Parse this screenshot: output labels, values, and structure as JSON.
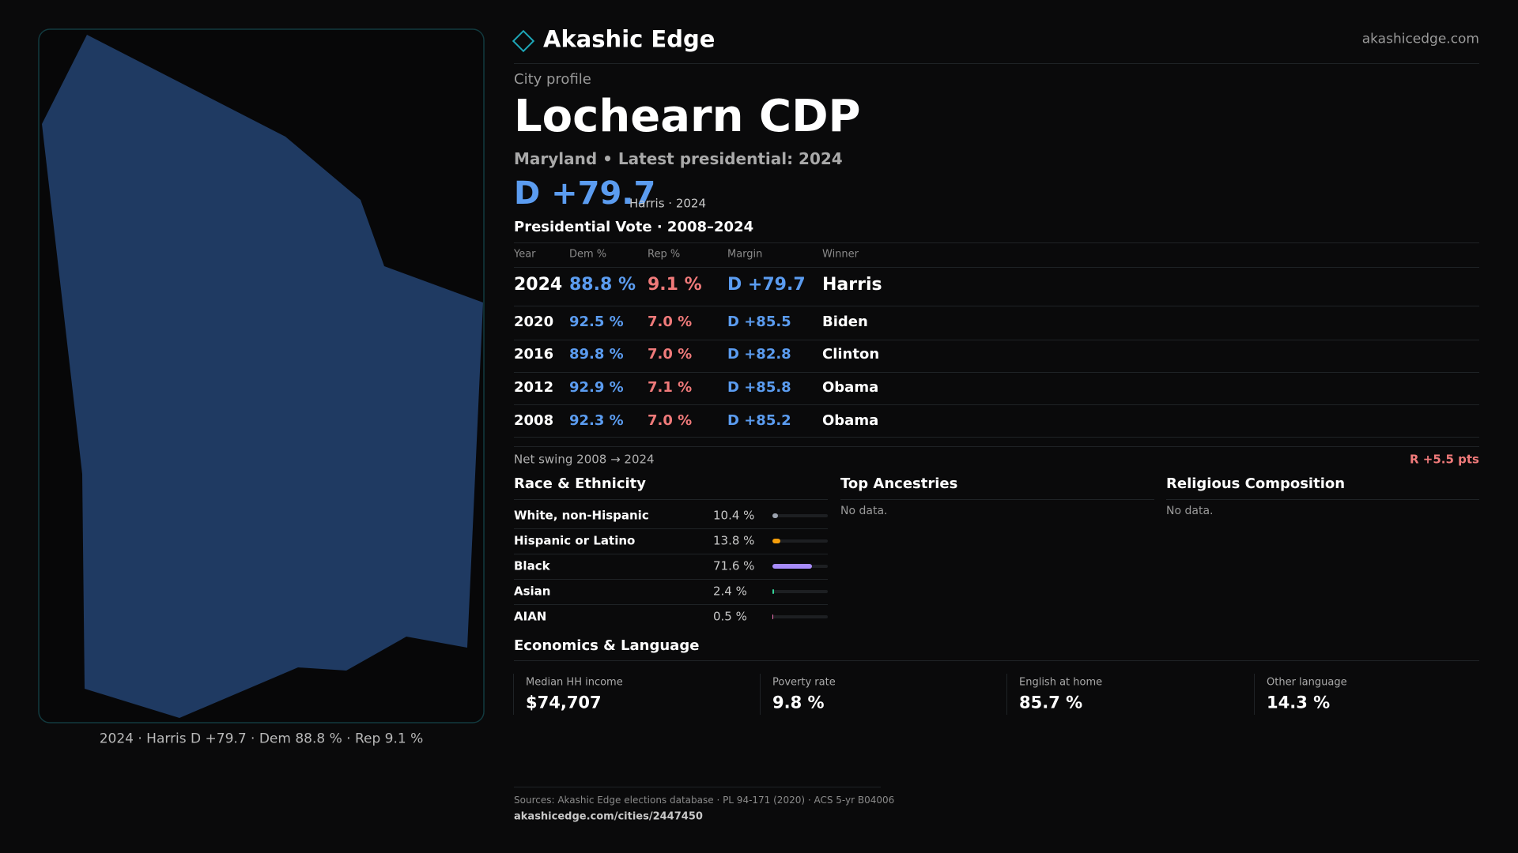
{
  "header": {
    "brand": "Akashic Edge",
    "site": "akashicedge.com"
  },
  "profile": {
    "eyebrow": "City profile",
    "name": "Lochearn CDP",
    "subtitle": "Maryland • Latest presidential: 2024",
    "margin": "D +79.7",
    "margin_note": "Harris · 2024"
  },
  "votes": {
    "title": "Presidential Vote · 2008–2024",
    "columns": [
      "Year",
      "Dem %",
      "Rep %",
      "Margin",
      "Winner"
    ],
    "rows": [
      [
        "2024",
        "88.8 %",
        "9.1 %",
        "D +79.7",
        "Harris"
      ],
      [
        "2020",
        "92.5 %",
        "7.0 %",
        "D +85.5",
        "Biden"
      ],
      [
        "2016",
        "89.8 %",
        "7.0 %",
        "D +82.8",
        "Clinton"
      ],
      [
        "2012",
        "92.9 %",
        "7.1 %",
        "D +85.8",
        "Obama"
      ],
      [
        "2008",
        "92.3 %",
        "7.0 %",
        "D +85.2",
        "Obama"
      ]
    ]
  },
  "swing": {
    "label": "Net swing 2008 → 2024",
    "value": "R +5.5 pts"
  },
  "race": {
    "title": "Race & Ethnicity",
    "rows": [
      {
        "name": "White, non-Hispanic",
        "value": 10.4,
        "label": "10.4 %",
        "color": "#9ca3af"
      },
      {
        "name": "Hispanic or Latino",
        "value": 13.8,
        "label": "13.8 %",
        "color": "#f59e0b"
      },
      {
        "name": "Black",
        "value": 71.6,
        "label": "71.6 %",
        "color": "#a78bfa"
      },
      {
        "name": "Asian",
        "value": 2.4,
        "label": "2.4 %",
        "color": "#34d399"
      },
      {
        "name": "AIAN",
        "value": 0.5,
        "label": "0.5 %",
        "color": "#f472b6"
      }
    ]
  },
  "ancestries": {
    "title": "Top Ancestries",
    "note": "No data."
  },
  "religion": {
    "title": "Religious Composition",
    "note": "No data."
  },
  "economics": {
    "title": "Economics & Language",
    "items": [
      {
        "label": "Median HH income",
        "value": "$74,707"
      },
      {
        "label": "Poverty rate",
        "value": "9.8 %"
      },
      {
        "label": "English at home",
        "value": "85.7 %"
      },
      {
        "label": "Other language",
        "value": "14.3 %"
      }
    ]
  },
  "map": {
    "caption": "2024 · Harris D +79.7 · Dem 88.8 % · Rep 9.1 %"
  },
  "footer": {
    "sources": "Sources: Akashic Edge elections database · PL 94-171 (2020) · ACS 5-yr B04006",
    "url": "akashicedge.com/cities/2447450"
  }
}
